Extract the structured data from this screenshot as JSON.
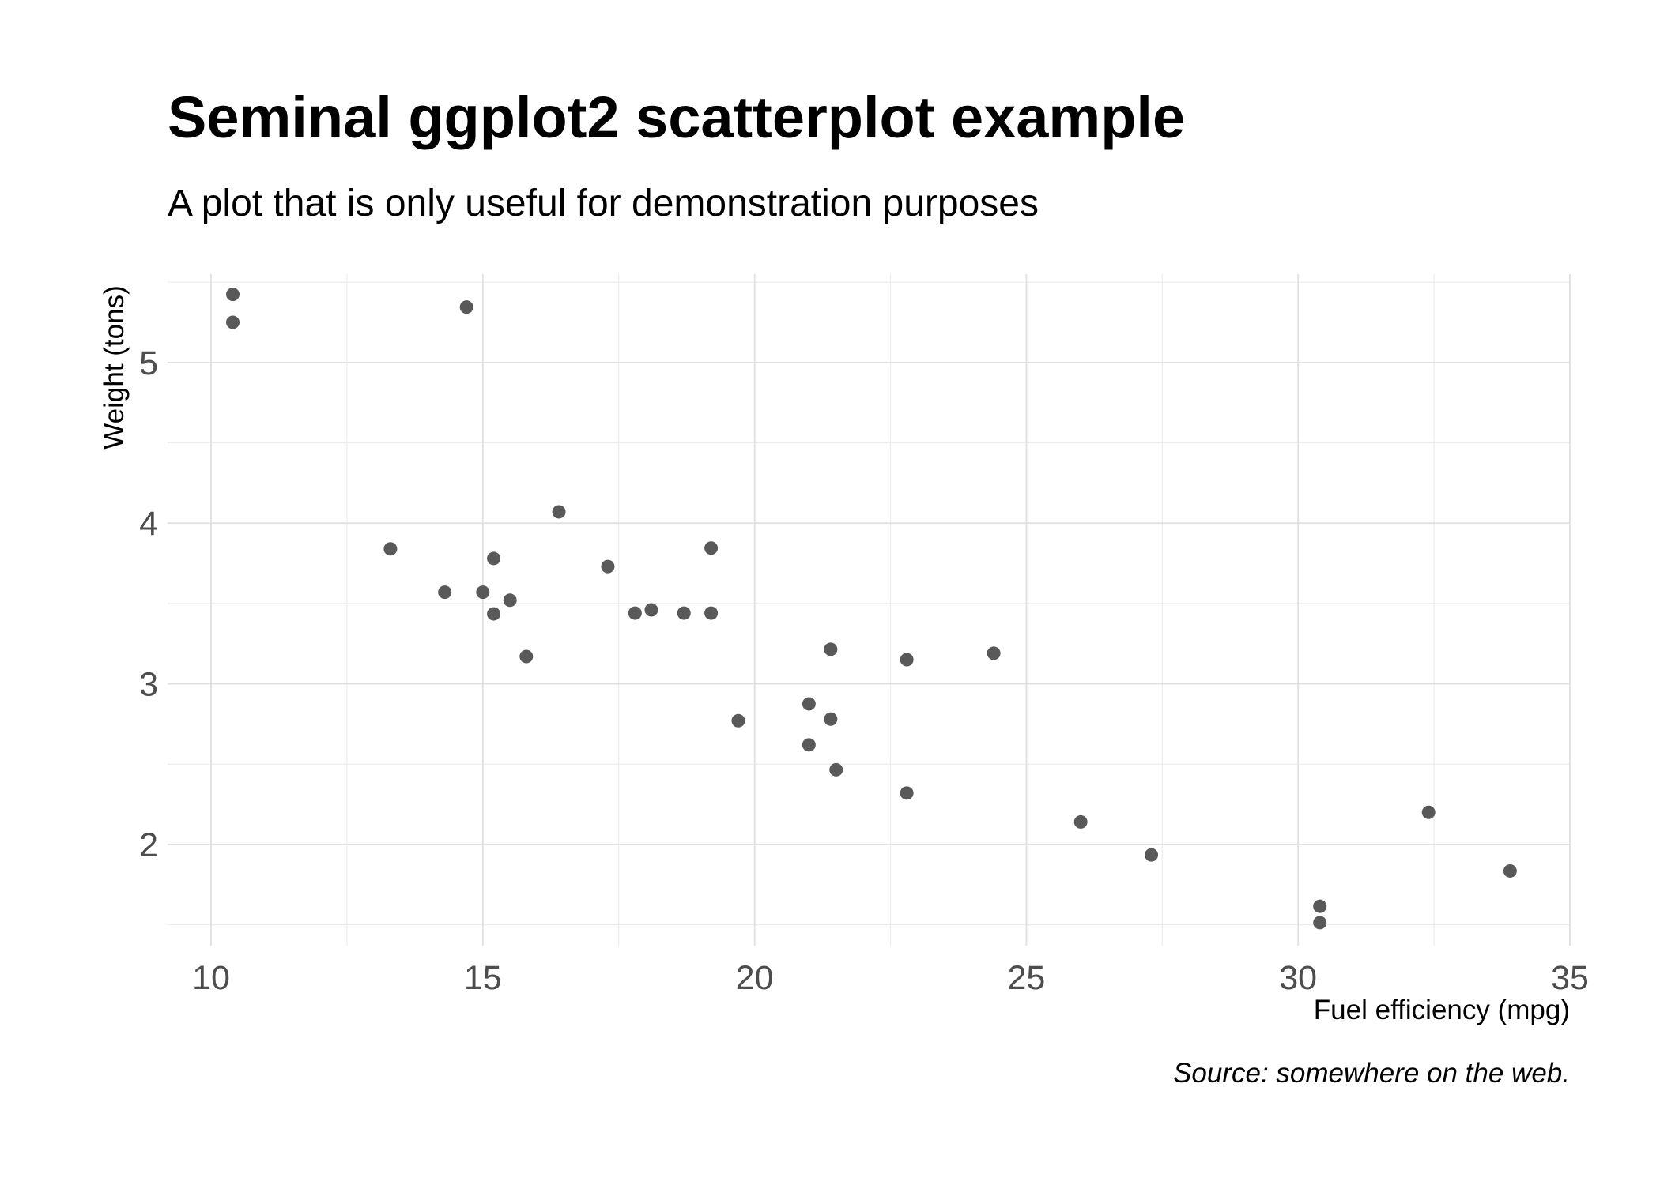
{
  "chart_data": {
    "type": "scatter",
    "title": "Seminal ggplot2 scatterplot example",
    "subtitle": "A plot that is only useful for demonstration purposes",
    "xlabel": "Fuel efficiency (mpg)",
    "ylabel": "Weight (tons)",
    "caption": "Source: somewhere on the web.",
    "xlim": [
      9.2,
      35.0
    ],
    "ylim": [
      1.37,
      5.55
    ],
    "x_ticks": [
      10,
      15,
      20,
      25,
      30,
      35
    ],
    "y_ticks": [
      2,
      3,
      4,
      5
    ],
    "x_tick_labels": [
      "10",
      "15",
      "20",
      "25",
      "30",
      "35"
    ],
    "y_tick_labels": [
      "2",
      "3",
      "4",
      "5"
    ],
    "grid": true,
    "legend": "none",
    "point_color": "#595959",
    "points": [
      {
        "x": 21.0,
        "y": 2.62
      },
      {
        "x": 21.0,
        "y": 2.875
      },
      {
        "x": 22.8,
        "y": 2.32
      },
      {
        "x": 21.4,
        "y": 3.215
      },
      {
        "x": 18.7,
        "y": 3.44
      },
      {
        "x": 18.1,
        "y": 3.46
      },
      {
        "x": 14.3,
        "y": 3.57
      },
      {
        "x": 24.4,
        "y": 3.19
      },
      {
        "x": 22.8,
        "y": 3.15
      },
      {
        "x": 19.2,
        "y": 3.44
      },
      {
        "x": 17.8,
        "y": 3.44
      },
      {
        "x": 16.4,
        "y": 4.07
      },
      {
        "x": 17.3,
        "y": 3.73
      },
      {
        "x": 15.2,
        "y": 3.78
      },
      {
        "x": 10.4,
        "y": 5.25
      },
      {
        "x": 10.4,
        "y": 5.424
      },
      {
        "x": 14.7,
        "y": 5.345
      },
      {
        "x": 32.4,
        "y": 2.2
      },
      {
        "x": 30.4,
        "y": 1.615
      },
      {
        "x": 33.9,
        "y": 1.835
      },
      {
        "x": 21.5,
        "y": 2.465
      },
      {
        "x": 15.5,
        "y": 3.52
      },
      {
        "x": 15.2,
        "y": 3.435
      },
      {
        "x": 13.3,
        "y": 3.84
      },
      {
        "x": 19.2,
        "y": 3.845
      },
      {
        "x": 27.3,
        "y": 1.935
      },
      {
        "x": 26.0,
        "y": 2.14
      },
      {
        "x": 30.4,
        "y": 1.513
      },
      {
        "x": 15.8,
        "y": 3.17
      },
      {
        "x": 19.7,
        "y": 2.77
      },
      {
        "x": 15.0,
        "y": 3.57
      },
      {
        "x": 21.4,
        "y": 2.78
      }
    ]
  }
}
